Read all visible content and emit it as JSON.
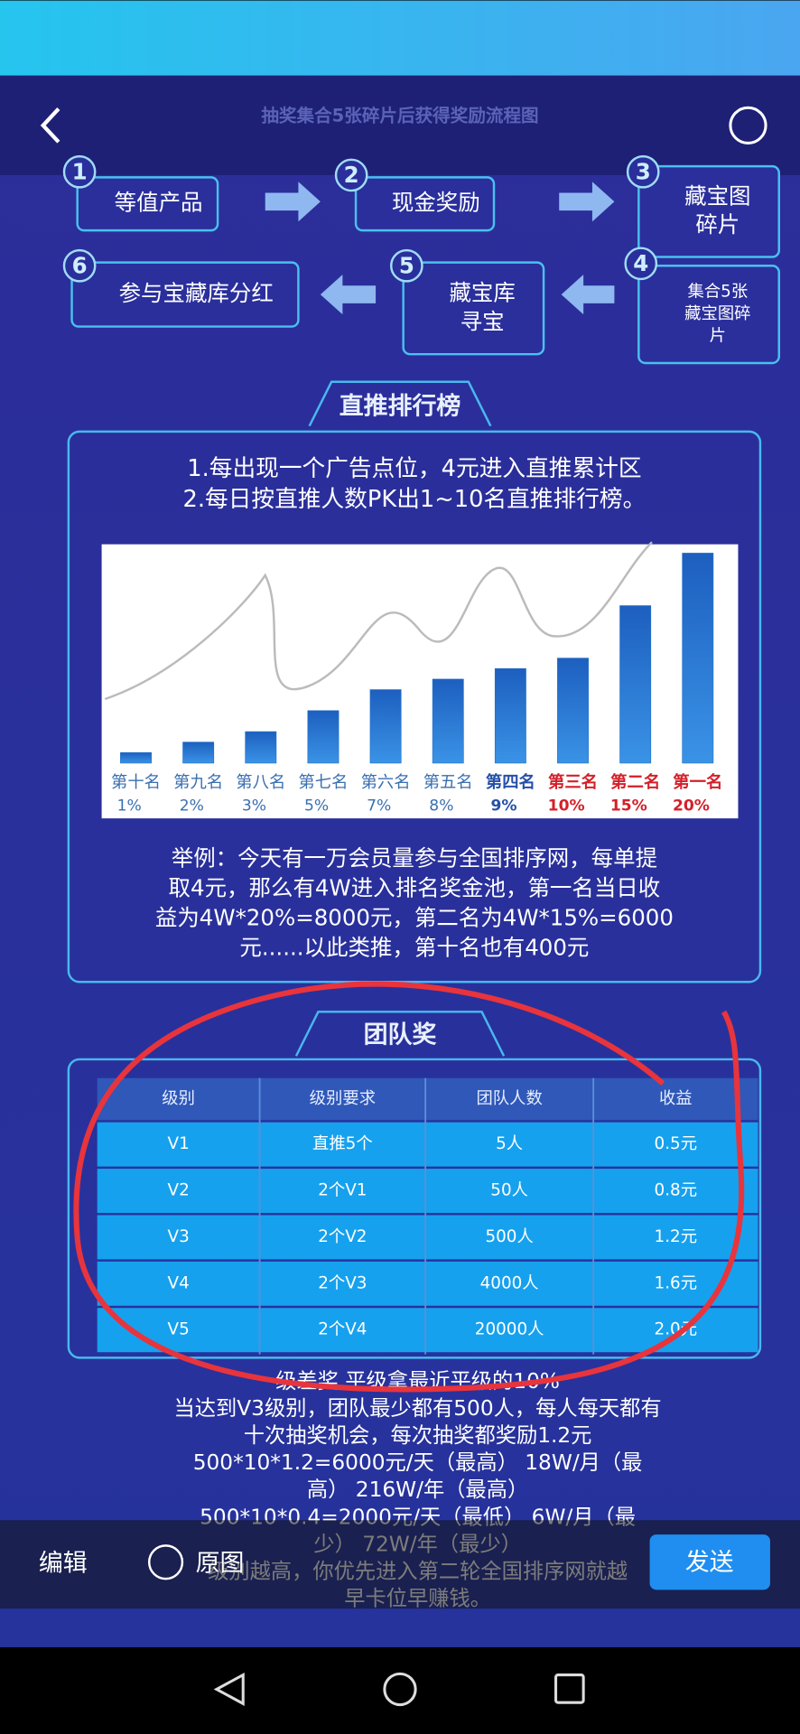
{
  "header": {
    "title": "抽奖集合5张碎片后获得奖励流程图"
  },
  "flow": [
    {
      "num": 1,
      "lines": [
        "等值产品"
      ]
    },
    {
      "num": 2,
      "lines": [
        "现金奖励"
      ]
    },
    {
      "num": 3,
      "lines": [
        "藏宝图",
        "碎片"
      ]
    },
    {
      "num": 4,
      "lines": [
        "集合5张",
        "藏宝图碎",
        "片"
      ]
    },
    {
      "num": 5,
      "lines": [
        "藏宝库",
        "寻宝"
      ]
    },
    {
      "num": 6,
      "lines": [
        "参与宝藏库分红"
      ]
    }
  ],
  "ranking": {
    "title": "直推排行榜",
    "rules": [
      "1.每出现一个广告点位，4元进入直推累计区",
      "2.每日按直推人数PK出1~10名直推排行榜。"
    ],
    "example": [
      "举例：今天有一万会员量参与全国排序网，每单提",
      "取4元，那么有4W进入排名奖金池，第一名当日收",
      "益为4W*20%=8000元，第二名为4W*15%=6000",
      "元......以此类推，第十名也有400元"
    ]
  },
  "chart_data": {
    "type": "bar",
    "categories": [
      "第十名",
      "第九名",
      "第八名",
      "第七名",
      "第六名",
      "第五名",
      "第四名",
      "第三名",
      "第二名",
      "第一名"
    ],
    "values": [
      1,
      2,
      3,
      5,
      7,
      8,
      9,
      10,
      15,
      20
    ],
    "value_labels": [
      "1%",
      "2%",
      "3%",
      "5%",
      "7%",
      "8%",
      "9%",
      "10%",
      "15%",
      "20%"
    ],
    "color": "#1f6fc8",
    "label_colors": [
      "#3a6fb0",
      "#3a6fb0",
      "#3a6fb0",
      "#3a6fb0",
      "#3a6fb0",
      "#3a6fb0",
      "#2650a8",
      "#d4202a",
      "#d4202a",
      "#d4202a"
    ]
  },
  "team": {
    "title": "团队奖",
    "columns": [
      "级别",
      "级别要求",
      "团队人数",
      "收益"
    ],
    "rows": [
      [
        "V1",
        "直推5个",
        "5人",
        "0.5元"
      ],
      [
        "V2",
        "2个V1",
        "50人",
        "0.8元"
      ],
      [
        "V3",
        "2个V2",
        "500人",
        "1.2元"
      ],
      [
        "V4",
        "2个V3",
        "4000人",
        "1.6元"
      ],
      [
        "V5",
        "2个V4",
        "20000人",
        "2.0元"
      ]
    ]
  },
  "notes": [
    "级差奖 平级拿最近平级的10%",
    "当达到V3级别，团队最少都有500人，每人每天都有",
    "十次抽奖机会，每次抽奖都奖励1.2元",
    "500*10*1.2=6000元/天（最高） 18W/月（最",
    "高） 216W/年（最高）",
    "500*10*0.4=2000元/天（最低） 6W/月（最",
    "少） 72W/年（最少）",
    "级别越高，你优先进入第二轮全国排序网就越",
    "早卡位早赚钱。"
  ],
  "toolbar": {
    "edit": "编辑",
    "original": "原图",
    "send": "发送"
  }
}
